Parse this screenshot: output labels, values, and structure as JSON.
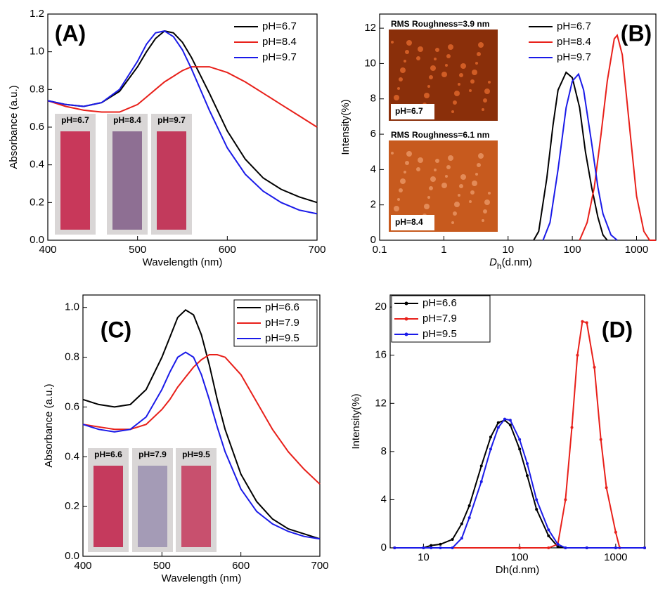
{
  "chart_data": [
    {
      "type": "line",
      "annotation": "(A)",
      "xlabel": "Wavelength (nm)",
      "ylabel": "Absorbance (a.u.)",
      "xlim": [
        400,
        700
      ],
      "ylim": [
        0,
        1.2
      ],
      "xticks": [
        400,
        500,
        600,
        700
      ],
      "yticks": [
        {
          "value": 0,
          "label": "0.0"
        },
        0.2,
        0.4,
        0.6,
        0.8,
        {
          "value": 1,
          "label": "1.0"
        },
        1.2
      ],
      "legend": "upper right",
      "insets": [
        "pH=6.7",
        "pH=8.4",
        "pH=9.7"
      ],
      "x": [
        400,
        420,
        440,
        460,
        480,
        500,
        510,
        520,
        530,
        540,
        550,
        560,
        580,
        600,
        620,
        640,
        660,
        680,
        700
      ],
      "series": [
        {
          "name": "pH=6.7",
          "color": "#000000",
          "values": [
            0.74,
            0.72,
            0.71,
            0.73,
            0.79,
            0.92,
            1.0,
            1.07,
            1.11,
            1.1,
            1.05,
            0.97,
            0.78,
            0.58,
            0.43,
            0.33,
            0.27,
            0.23,
            0.2
          ]
        },
        {
          "name": "pH=8.4",
          "color": "#e8201a",
          "values": [
            0.74,
            0.71,
            0.69,
            0.68,
            0.68,
            0.72,
            0.76,
            0.8,
            0.84,
            0.87,
            0.9,
            0.92,
            0.92,
            0.89,
            0.84,
            0.78,
            0.72,
            0.66,
            0.6
          ]
        },
        {
          "name": "pH=9.7",
          "color": "#1a1ae8",
          "values": [
            0.74,
            0.72,
            0.71,
            0.73,
            0.8,
            0.95,
            1.04,
            1.1,
            1.11,
            1.08,
            1.01,
            0.91,
            0.69,
            0.49,
            0.35,
            0.26,
            0.2,
            0.16,
            0.14
          ]
        }
      ]
    },
    {
      "type": "line",
      "annotation": "(B)",
      "xlabel_parts": [
        "D",
        "h",
        "(d.nm)"
      ],
      "ylabel": "Intensity(%)",
      "xscale": "log",
      "xlim": [
        0.1,
        2000
      ],
      "ylim": [
        0,
        12.8
      ],
      "xticks": [
        0.1,
        1,
        10,
        100,
        1000
      ],
      "yticks": [
        0,
        2,
        4,
        6,
        8,
        10,
        12
      ],
      "legend": "upper right",
      "insets": [
        {
          "title": "RMS Roughness=3.9 nm",
          "label": "pH=6.7"
        },
        {
          "title": "RMS Roughness=6.1 nm",
          "label": "pH=8.4"
        }
      ],
      "series": [
        {
          "name": "pH=6.7",
          "color": "#000000",
          "x": [
            25,
            30,
            40,
            50,
            60,
            80,
            100,
            130,
            160,
            200,
            250,
            300,
            350
          ],
          "values": [
            0,
            0.5,
            3.5,
            6.5,
            8.5,
            9.5,
            9.2,
            7.5,
            5,
            3,
            1.3,
            0.3,
            0
          ]
        },
        {
          "name": "pH=8.4",
          "color": "#e8201a",
          "x": [
            130,
            170,
            220,
            280,
            350,
            450,
            500,
            600,
            800,
            1000,
            1300,
            1600,
            2000
          ],
          "values": [
            0,
            1,
            3,
            6,
            9,
            11.4,
            11.6,
            10.5,
            6,
            2.5,
            0.5,
            0,
            0
          ]
        },
        {
          "name": "pH=9.7",
          "color": "#1a1ae8",
          "x": [
            35,
            45,
            60,
            80,
            100,
            125,
            150,
            200,
            250,
            300,
            400,
            500
          ],
          "values": [
            0,
            1,
            4,
            7.5,
            9,
            9.4,
            8.5,
            5.5,
            3,
            1.5,
            0.3,
            0
          ]
        }
      ]
    },
    {
      "type": "line",
      "annotation": "(C)",
      "xlabel": "Wavelength (nm)",
      "ylabel": "Absorbance (a.u.)",
      "xlim": [
        400,
        700
      ],
      "ylim": [
        0,
        1.05
      ],
      "xticks": [
        400,
        500,
        600,
        700
      ],
      "yticks": [
        {
          "value": 0,
          "label": "0.0"
        },
        0.2,
        0.4,
        0.6,
        0.8,
        {
          "value": 1,
          "label": "1.0"
        }
      ],
      "legend": "upper right",
      "insets": [
        "pH=6.6",
        "pH=7.9",
        "pH=9.5"
      ],
      "x": [
        400,
        420,
        440,
        460,
        480,
        500,
        510,
        520,
        530,
        540,
        550,
        560,
        570,
        580,
        600,
        620,
        640,
        660,
        680,
        700
      ],
      "series": [
        {
          "name": "pH=6.6",
          "color": "#000000",
          "values": [
            0.63,
            0.61,
            0.6,
            0.61,
            0.67,
            0.8,
            0.88,
            0.96,
            0.99,
            0.97,
            0.89,
            0.77,
            0.63,
            0.51,
            0.33,
            0.22,
            0.15,
            0.11,
            0.09,
            0.07
          ]
        },
        {
          "name": "pH=7.9",
          "color": "#e8201a",
          "values": [
            0.53,
            0.52,
            0.51,
            0.51,
            0.53,
            0.59,
            0.63,
            0.68,
            0.72,
            0.76,
            0.79,
            0.81,
            0.81,
            0.8,
            0.73,
            0.62,
            0.51,
            0.42,
            0.35,
            0.29
          ]
        },
        {
          "name": "pH=9.5",
          "color": "#1a1ae8",
          "values": [
            0.53,
            0.51,
            0.5,
            0.51,
            0.56,
            0.67,
            0.74,
            0.8,
            0.82,
            0.8,
            0.73,
            0.63,
            0.52,
            0.42,
            0.27,
            0.18,
            0.13,
            0.1,
            0.08,
            0.07
          ]
        }
      ]
    },
    {
      "type": "line",
      "annotation": "(D)",
      "xlabel": "Dh(d.nm)",
      "ylabel": "Intensity(%)",
      "xscale": "log",
      "xlim": [
        4.5,
        2000
      ],
      "ylim": [
        0,
        21
      ],
      "xticks": [
        10,
        100,
        1000
      ],
      "yticks": [
        0,
        4,
        8,
        12,
        16,
        20
      ],
      "legend": "upper left",
      "markers": true,
      "series": [
        {
          "name": "pH=6.6",
          "color": "#000000",
          "x": [
            5,
            10,
            12,
            15,
            20,
            25,
            30,
            40,
            50,
            60,
            70,
            80,
            100,
            120,
            150,
            200,
            250,
            300,
            500,
            1000,
            2000
          ],
          "values": [
            0,
            0,
            0.2,
            0.3,
            0.7,
            2,
            3.5,
            6.8,
            9.2,
            10.4,
            10.6,
            10.2,
            8.2,
            6,
            3.2,
            1,
            0.1,
            0,
            0,
            0,
            0
          ]
        },
        {
          "name": "pH=7.9",
          "color": "#e8201a",
          "x": [
            5,
            100,
            200,
            250,
            300,
            350,
            400,
            450,
            500,
            600,
            700,
            800,
            1000,
            1100,
            2000
          ],
          "values": [
            0,
            0,
            0,
            0.3,
            4,
            10,
            16,
            18.8,
            18.7,
            15,
            9,
            5,
            1.3,
            0,
            0
          ]
        },
        {
          "name": "pH=9.5",
          "color": "#1a1ae8",
          "x": [
            5,
            10,
            12,
            15,
            20,
            25,
            30,
            40,
            50,
            60,
            70,
            80,
            100,
            120,
            150,
            200,
            250,
            300,
            500,
            1000,
            2000
          ],
          "values": [
            0,
            0,
            0,
            0,
            0,
            0.8,
            2.5,
            5.5,
            8.2,
            10,
            10.7,
            10.6,
            9,
            7,
            4,
            1.5,
            0.3,
            0,
            0,
            0,
            0
          ]
        }
      ]
    }
  ]
}
